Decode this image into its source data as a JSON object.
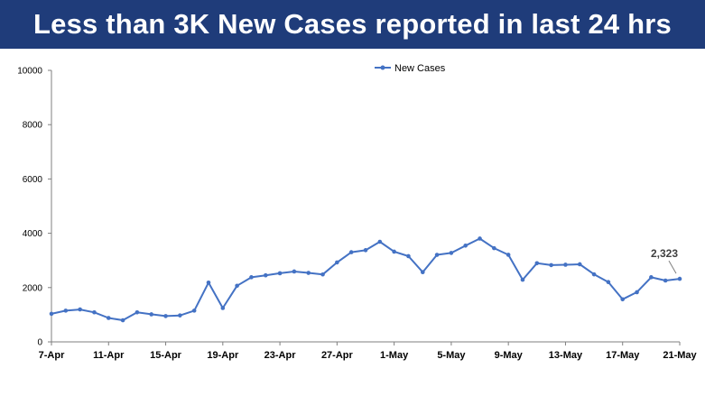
{
  "banner": {
    "title": "Less than 3K New Cases reported in last 24 hrs"
  },
  "colors": {
    "banner": "#1f3c7a",
    "series": "#4472c4",
    "axis": "#7f7f7f",
    "text": "#000000"
  },
  "chart_data": {
    "type": "line",
    "title": "",
    "xlabel": "",
    "ylabel": "",
    "ylim": [
      0,
      10000
    ],
    "yticks": [
      0,
      2000,
      4000,
      6000,
      8000,
      10000
    ],
    "grid": false,
    "legend": "top-center",
    "x": [
      "7-Apr",
      "8-Apr",
      "9-Apr",
      "10-Apr",
      "11-Apr",
      "12-Apr",
      "13-Apr",
      "14-Apr",
      "15-Apr",
      "16-Apr",
      "17-Apr",
      "18-Apr",
      "19-Apr",
      "20-Apr",
      "21-Apr",
      "22-Apr",
      "23-Apr",
      "24-Apr",
      "25-Apr",
      "26-Apr",
      "27-Apr",
      "28-Apr",
      "29-Apr",
      "30-Apr",
      "1-May",
      "2-May",
      "3-May",
      "4-May",
      "5-May",
      "6-May",
      "7-May",
      "8-May",
      "9-May",
      "10-May",
      "11-May",
      "12-May",
      "13-May",
      "14-May",
      "15-May",
      "16-May",
      "17-May",
      "18-May",
      "19-May",
      "20-May",
      "21-May"
    ],
    "xtick_labels": [
      "7-Apr",
      "11-Apr",
      "15-Apr",
      "19-Apr",
      "23-Apr",
      "27-Apr",
      "1-May",
      "5-May",
      "9-May",
      "13-May",
      "17-May",
      "21-May"
    ],
    "series": [
      {
        "name": "New Cases",
        "values": [
          1033,
          1150,
          1194,
          1088,
          880,
          796,
          1088,
          1015,
          949,
          975,
          1150,
          2183,
          1247,
          2067,
          2380,
          2451,
          2527,
          2593,
          2541,
          2483,
          2927,
          3303,
          3377,
          3688,
          3324,
          3157,
          2568,
          3205,
          3275,
          3545,
          3805,
          3451,
          3207,
          2288,
          2897,
          2827,
          2841,
          2858,
          2487,
          2202,
          1569,
          1829,
          2380,
          2259,
          2323
        ]
      }
    ],
    "annotations": [
      {
        "x": "21-May",
        "label": "2,323"
      }
    ]
  }
}
